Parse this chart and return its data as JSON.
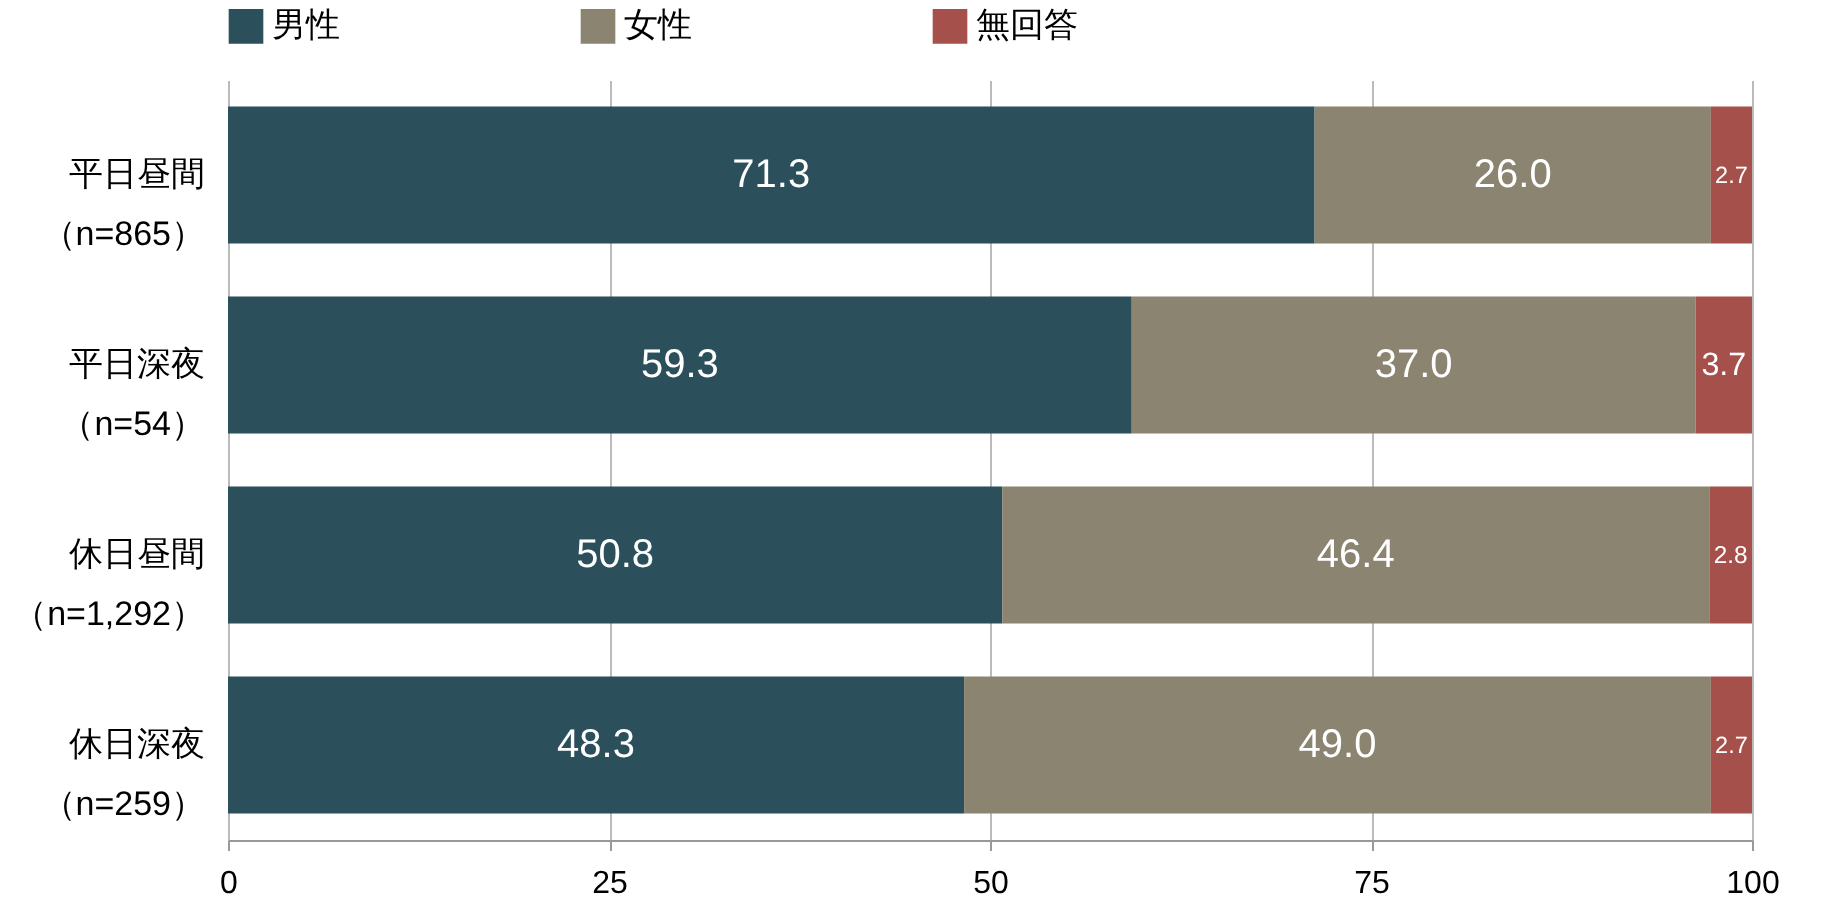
{
  "chart_data": {
    "type": "bar",
    "orientation": "horizontal",
    "stacked": true,
    "categories": [
      "平日昼間（n=865）",
      "平日深夜（n=54）",
      "休日昼間（n=1,292）",
      "休日深夜（n=259）"
    ],
    "series": [
      {
        "name": "男性",
        "color": "#2b4f5b",
        "values": [
          71.3,
          59.3,
          50.8,
          48.3
        ],
        "value_labels": [
          "71.3",
          "59.3",
          "50.8",
          "48.3"
        ]
      },
      {
        "name": "女性",
        "color": "#8a8470",
        "values": [
          26.0,
          37.0,
          46.4,
          49.0
        ],
        "value_labels": [
          "26.0",
          "37.0",
          "46.4",
          "49.0"
        ]
      },
      {
        "name": "無回答",
        "color": "#a5504a",
        "values": [
          2.7,
          3.7,
          2.8,
          2.7
        ],
        "value_labels": [
          "2.7",
          "3.7",
          "2.8",
          "2.7"
        ]
      }
    ],
    "xlim": [
      0,
      100
    ],
    "xticks": [
      0,
      25,
      50,
      75,
      100
    ],
    "grid": "x",
    "legend": "top"
  }
}
